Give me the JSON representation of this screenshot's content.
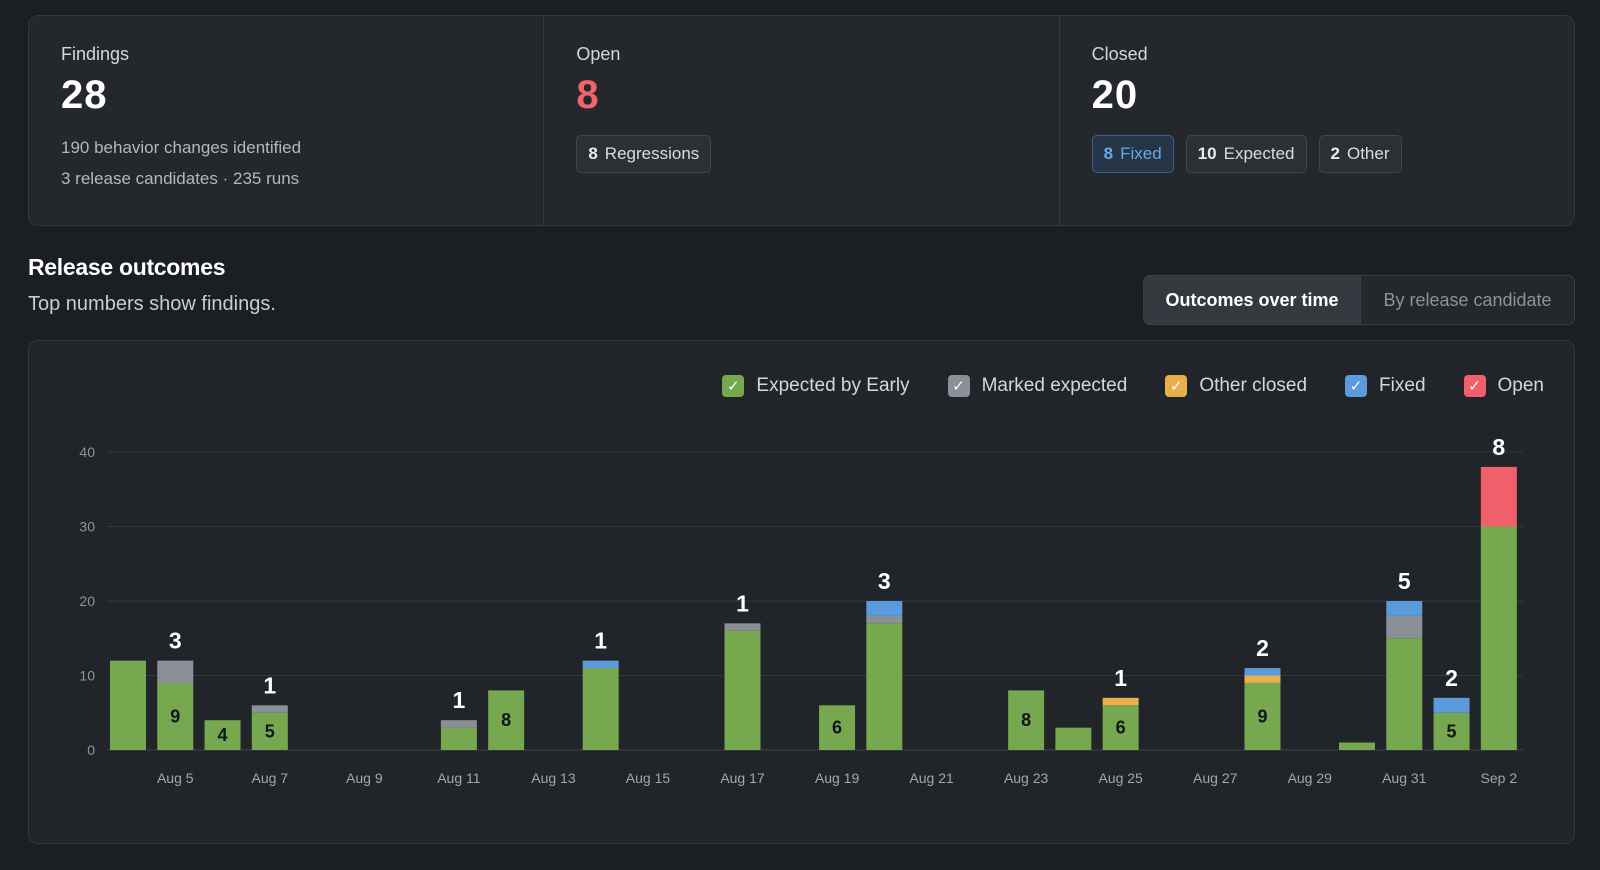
{
  "summary": {
    "findings": {
      "label": "Findings",
      "value": "28",
      "line1": "190 behavior changes identified",
      "line2": "3 release candidates · 235 runs"
    },
    "open": {
      "label": "Open",
      "value": "8",
      "chips": [
        {
          "count": "8",
          "label": "Regressions"
        }
      ]
    },
    "closed": {
      "label": "Closed",
      "value": "20",
      "chips": [
        {
          "count": "8",
          "label": "Fixed"
        },
        {
          "count": "10",
          "label": "Expected"
        },
        {
          "count": "2",
          "label": "Other"
        }
      ]
    }
  },
  "section": {
    "title": "Release outcomes",
    "subtitle": "Top numbers show findings."
  },
  "view_toggle": {
    "active": "Outcomes over time",
    "inactive": "By release candidate"
  },
  "legend": [
    {
      "label": "Expected by Early",
      "color": "#76a84f"
    },
    {
      "label": "Marked expected",
      "color": "#8b9098"
    },
    {
      "label": "Other closed",
      "color": "#e8b04b"
    },
    {
      "label": "Fixed",
      "color": "#5b9bdc"
    },
    {
      "label": "Open",
      "color": "#f0606b"
    }
  ],
  "chart_data": {
    "type": "bar",
    "stacked": true,
    "ylim": [
      0,
      40
    ],
    "yticks": [
      0,
      10,
      20,
      30,
      40
    ],
    "grid": true,
    "legend_position": "top-right",
    "categories": [
      "Aug 4",
      "Aug 5",
      "Aug 6",
      "Aug 7",
      "Aug 8",
      "Aug 9",
      "Aug 10",
      "Aug 11",
      "Aug 12",
      "Aug 13",
      "Aug 14",
      "Aug 15",
      "Aug 16",
      "Aug 17",
      "Aug 18",
      "Aug 19",
      "Aug 20",
      "Aug 21",
      "Aug 22",
      "Aug 23",
      "Aug 24",
      "Aug 25",
      "Aug 26",
      "Aug 27",
      "Aug 28",
      "Aug 29",
      "Aug 30",
      "Aug 31",
      "Sep 1",
      "Sep 2"
    ],
    "xticks": [
      "Aug 5",
      "Aug 7",
      "Aug 9",
      "Aug 11",
      "Aug 13",
      "Aug 15",
      "Aug 17",
      "Aug 19",
      "Aug 21",
      "Aug 23",
      "Aug 25",
      "Aug 27",
      "Aug 29",
      "Aug 31",
      "Sep 2"
    ],
    "series": [
      {
        "name": "Expected by Early",
        "values": [
          12,
          9,
          4,
          5,
          0,
          0,
          0,
          3,
          8,
          0,
          11,
          0,
          0,
          16,
          0,
          6,
          17,
          0,
          0,
          8,
          3,
          6,
          0,
          0,
          9,
          0,
          1,
          15,
          5,
          30
        ]
      },
      {
        "name": "Marked expected",
        "values": [
          0,
          3,
          0,
          1,
          0,
          0,
          0,
          1,
          0,
          0,
          0,
          0,
          0,
          1,
          0,
          0,
          1,
          0,
          0,
          0,
          0,
          0,
          0,
          0,
          0,
          0,
          0,
          3,
          0,
          0
        ]
      },
      {
        "name": "Other closed",
        "values": [
          0,
          0,
          0,
          0,
          0,
          0,
          0,
          0,
          0,
          0,
          0,
          0,
          0,
          0,
          0,
          0,
          0,
          0,
          0,
          0,
          0,
          1,
          0,
          0,
          1,
          0,
          0,
          0,
          0,
          0
        ]
      },
      {
        "name": "Fixed",
        "values": [
          0,
          0,
          0,
          0,
          0,
          0,
          0,
          0,
          0,
          0,
          1,
          0,
          0,
          0,
          0,
          0,
          2,
          0,
          0,
          0,
          0,
          0,
          0,
          0,
          1,
          0,
          0,
          2,
          2,
          0
        ]
      },
      {
        "name": "Open",
        "values": [
          0,
          0,
          0,
          0,
          0,
          0,
          0,
          0,
          0,
          0,
          0,
          0,
          0,
          0,
          0,
          0,
          0,
          0,
          0,
          0,
          0,
          0,
          0,
          0,
          0,
          0,
          0,
          0,
          0,
          8
        ]
      }
    ],
    "top_labels": [
      null,
      "3",
      null,
      "1",
      null,
      null,
      null,
      "1",
      null,
      null,
      "1",
      null,
      null,
      "1",
      null,
      null,
      "3",
      null,
      null,
      null,
      null,
      "1",
      null,
      null,
      "2",
      null,
      null,
      "5",
      "2",
      "8"
    ],
    "inner_labels": [
      null,
      "9",
      "4",
      "5",
      null,
      null,
      null,
      null,
      "8",
      null,
      null,
      null,
      null,
      null,
      null,
      "6",
      null,
      null,
      null,
      "8",
      null,
      "6",
      null,
      null,
      "9",
      null,
      null,
      null,
      "5",
      null
    ]
  }
}
